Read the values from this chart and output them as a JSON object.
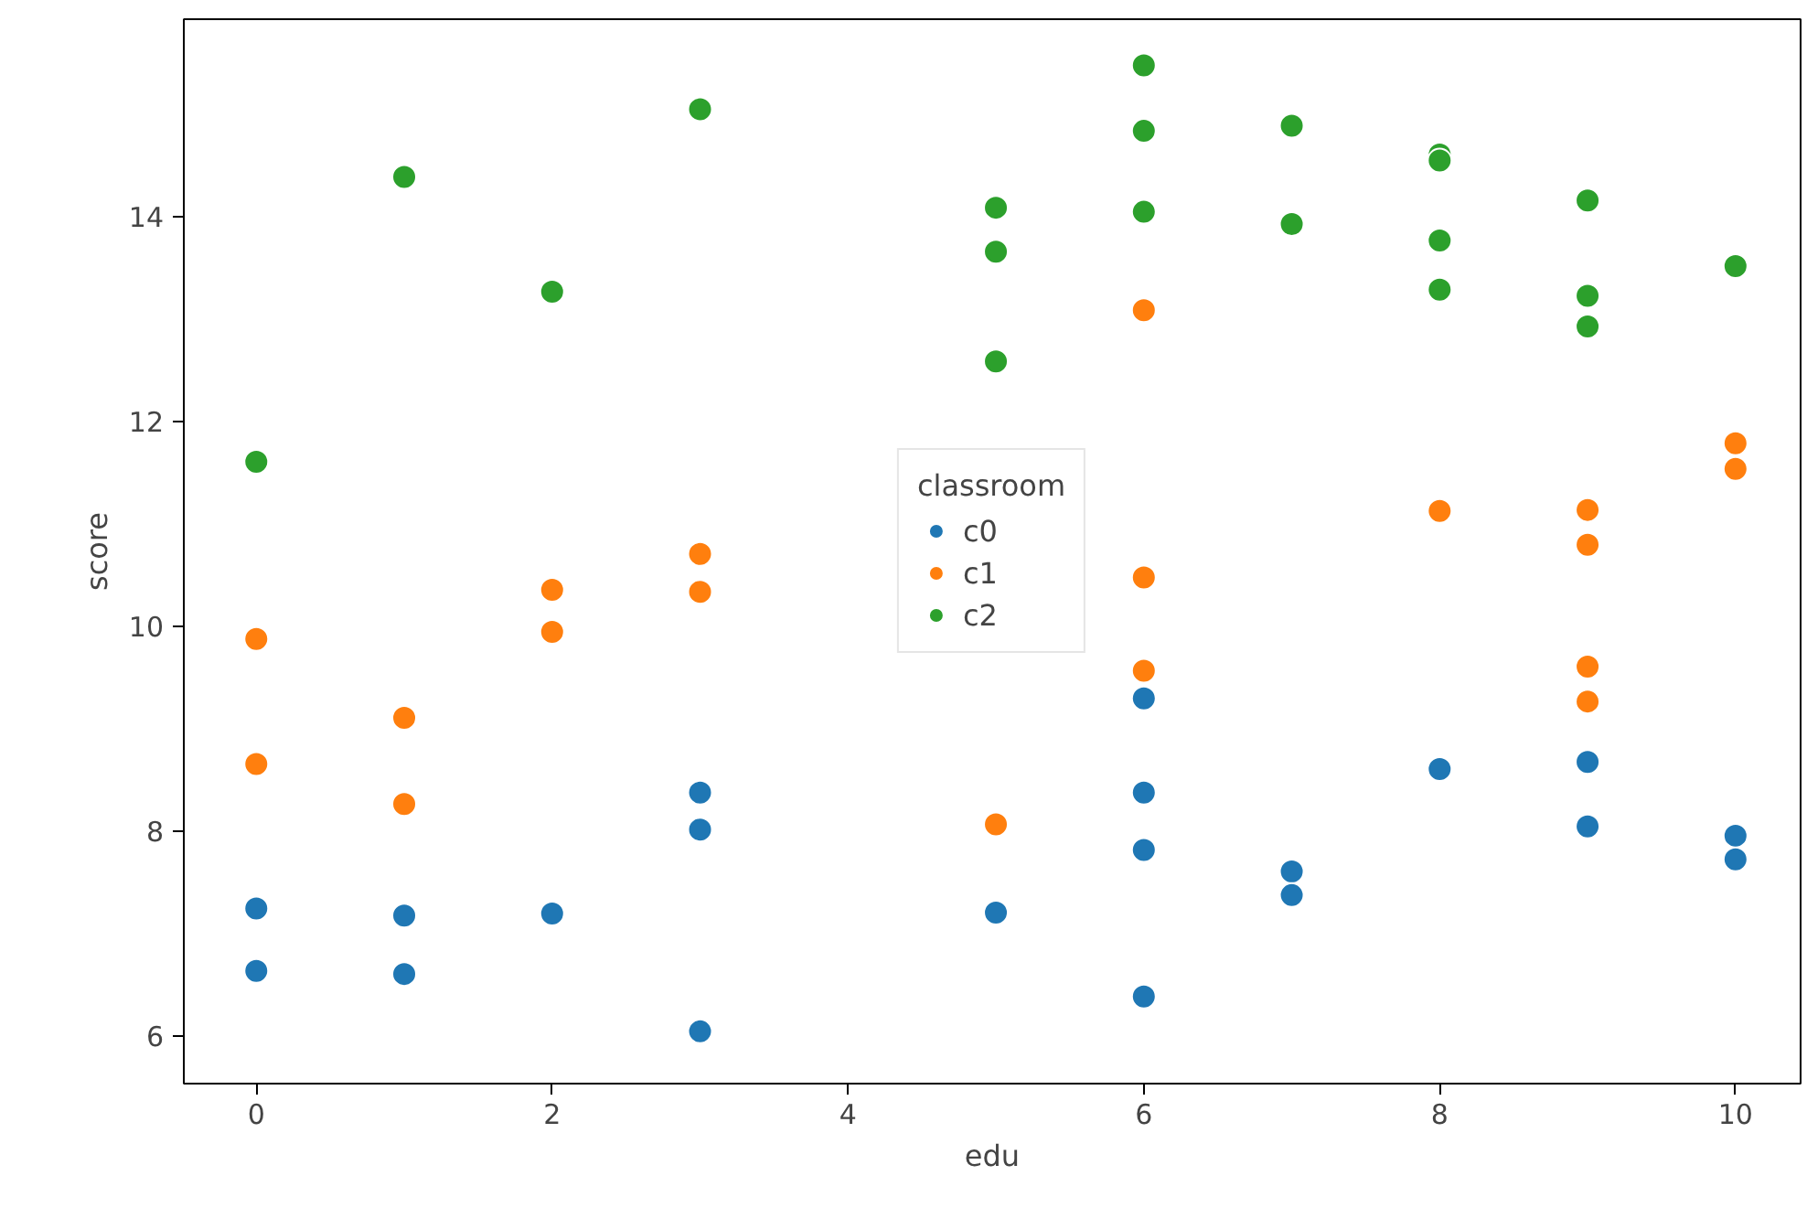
{
  "chart_data": {
    "type": "scatter",
    "xlabel": "edu",
    "ylabel": "score",
    "legend_title": "classroom",
    "legend": "center",
    "grid": false,
    "marker": "circle",
    "xlim": [
      -0.49,
      10.44
    ],
    "ylim": [
      5.54,
      15.93
    ],
    "xticks": [
      0,
      2,
      4,
      6,
      8,
      10
    ],
    "yticks": [
      6,
      8,
      10,
      12,
      14
    ],
    "series": [
      {
        "name": "c0",
        "color": "#1f77b4",
        "x": [
          0,
          0,
          1,
          1,
          2,
          3,
          3,
          3,
          5,
          6,
          6,
          6,
          6,
          7,
          7,
          8,
          9,
          9,
          10,
          10
        ],
        "values": [
          7.25,
          6.64,
          6.61,
          7.18,
          7.2,
          8.38,
          8.02,
          6.05,
          7.21,
          9.3,
          8.38,
          7.82,
          6.39,
          7.61,
          7.38,
          8.61,
          8.68,
          8.05,
          7.96,
          7.73
        ]
      },
      {
        "name": "c1",
        "color": "#ff7f0e",
        "x": [
          0,
          0,
          1,
          1,
          2,
          2,
          3,
          3,
          5,
          6,
          6,
          6,
          8,
          9,
          9,
          9,
          9,
          10,
          10
        ],
        "values": [
          9.88,
          8.66,
          9.11,
          8.27,
          10.36,
          9.95,
          10.71,
          10.34,
          8.07,
          13.09,
          10.48,
          9.57,
          11.13,
          11.14,
          10.8,
          9.61,
          9.27,
          11.79,
          11.54
        ]
      },
      {
        "name": "c2",
        "color": "#2ca02c",
        "x": [
          0,
          1,
          2,
          3,
          5,
          5,
          5,
          6,
          6,
          6,
          7,
          7,
          8,
          8,
          8,
          8,
          9,
          9,
          9,
          10
        ],
        "values": [
          11.61,
          14.39,
          13.27,
          15.05,
          14.09,
          13.66,
          12.59,
          15.48,
          14.84,
          14.05,
          14.89,
          13.93,
          14.61,
          14.55,
          13.77,
          13.29,
          14.16,
          13.23,
          12.93,
          13.52
        ]
      }
    ]
  }
}
